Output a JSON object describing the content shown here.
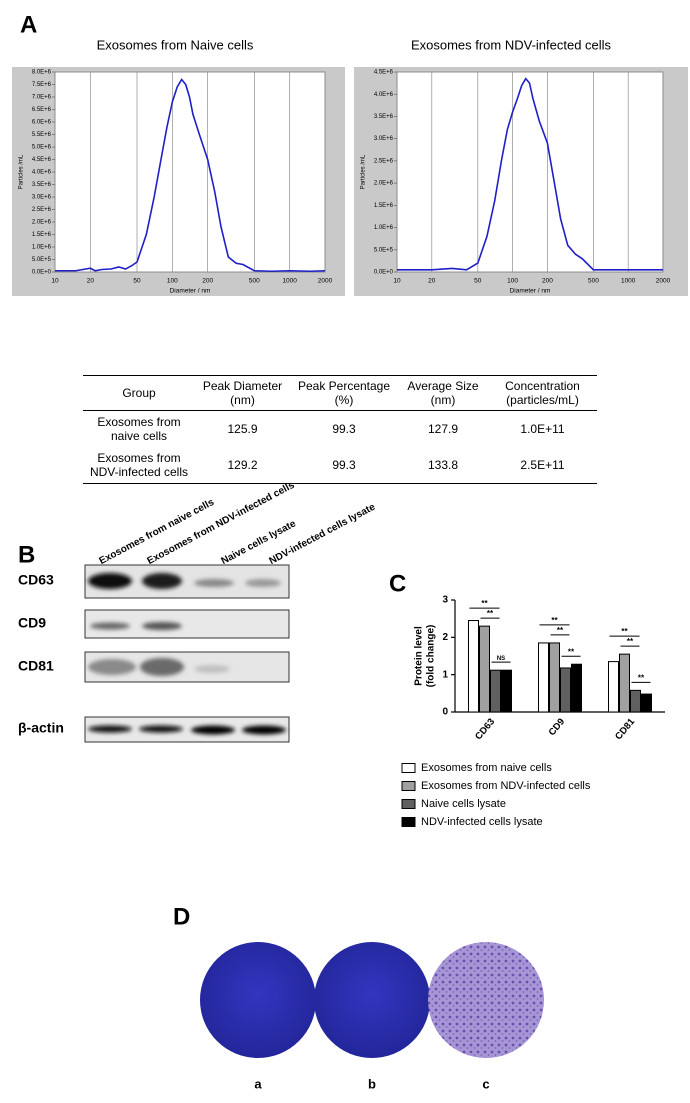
{
  "panels": [
    "A",
    "B",
    "C",
    "D"
  ],
  "chart_data": [
    {
      "type": "line",
      "title": "Exosomes from Naive cells",
      "xlabel": "Diameter / nm",
      "ylabel": "Particles /mL",
      "xscale": "log",
      "xlim": [
        10,
        2000
      ],
      "xticks": [
        10,
        20,
        50,
        100,
        200,
        500,
        1000,
        2000
      ],
      "ylim": [
        0,
        8000000
      ],
      "yticks": [
        {
          "value": 0,
          "label": "0.0E+0"
        },
        {
          "value": 500000,
          "label": "5.0E+5"
        },
        {
          "value": 1000000,
          "label": "1.0E+6"
        },
        {
          "value": 1500000,
          "label": "1.5E+6"
        },
        {
          "value": 2000000,
          "label": "2.0E+6"
        },
        {
          "value": 2500000,
          "label": "2.5E+6"
        },
        {
          "value": 3000000,
          "label": "3.0E+6"
        },
        {
          "value": 3500000,
          "label": "3.5E+6"
        },
        {
          "value": 4000000,
          "label": "4.0E+6"
        },
        {
          "value": 4500000,
          "label": "4.5E+6"
        },
        {
          "value": 5000000,
          "label": "5.0E+6"
        },
        {
          "value": 5500000,
          "label": "5.5E+6"
        },
        {
          "value": 6000000,
          "label": "6.0E+6"
        },
        {
          "value": 6500000,
          "label": "6.5E+6"
        },
        {
          "value": 7000000,
          "label": "7.0E+6"
        },
        {
          "value": 7500000,
          "label": "7.5E+6"
        },
        {
          "value": 8000000,
          "label": "8.0E+6"
        }
      ],
      "grid": true,
      "color": "#1f1fc8",
      "x": [
        10,
        15,
        20,
        22,
        25,
        30,
        35,
        40,
        45,
        50,
        60,
        70,
        80,
        90,
        100,
        110,
        120,
        130,
        140,
        150,
        170,
        200,
        230,
        260,
        300,
        350,
        400,
        500,
        700,
        1000,
        1500,
        2000
      ],
      "values": [
        50000,
        50000,
        150000,
        50000,
        100000,
        120000,
        200000,
        120000,
        250000,
        400000,
        1500000,
        3000000,
        4500000,
        5800000,
        6800000,
        7400000,
        7700000,
        7500000,
        7000000,
        6300000,
        5500000,
        4500000,
        3200000,
        1800000,
        600000,
        350000,
        300000,
        50000,
        30000,
        50000,
        30000,
        50000
      ]
    },
    {
      "type": "line",
      "title": "Exosomes from NDV-infected cells",
      "xlabel": "Diameter / nm",
      "ylabel": "Particles /mL",
      "xscale": "log",
      "xlim": [
        10,
        2000
      ],
      "xticks": [
        10,
        20,
        50,
        100,
        200,
        500,
        1000,
        2000
      ],
      "ylim": [
        0,
        4500000
      ],
      "yticks": [
        {
          "value": 0,
          "label": "0.0E+0"
        },
        {
          "value": 500000,
          "label": "5.0E+5"
        },
        {
          "value": 1000000,
          "label": "1.0E+6"
        },
        {
          "value": 1500000,
          "label": "1.5E+6"
        },
        {
          "value": 2000000,
          "label": "2.0E+6"
        },
        {
          "value": 2500000,
          "label": "2.5E+6"
        },
        {
          "value": 3000000,
          "label": "3.0E+6"
        },
        {
          "value": 3500000,
          "label": "3.5E+6"
        },
        {
          "value": 4000000,
          "label": "4.0E+6"
        },
        {
          "value": 4500000,
          "label": "4.5E+6"
        }
      ],
      "grid": true,
      "color": "#1f1fc8",
      "x": [
        10,
        20,
        30,
        40,
        50,
        60,
        70,
        80,
        90,
        100,
        110,
        120,
        130,
        140,
        150,
        170,
        200,
        230,
        260,
        300,
        350,
        400,
        500,
        700,
        1000,
        2000
      ],
      "values": [
        50000,
        50000,
        80000,
        50000,
        200000,
        800000,
        1600000,
        2500000,
        3200000,
        3600000,
        3900000,
        4200000,
        4350000,
        4250000,
        3900000,
        3400000,
        2900000,
        2000000,
        1200000,
        600000,
        400000,
        300000,
        50000,
        50000,
        50000,
        50000
      ]
    },
    {
      "type": "bar",
      "ylabel": [
        "Protein level",
        "(fold change)"
      ],
      "categories": [
        "CD63",
        "CD9",
        "CD81"
      ],
      "ylim": [
        0,
        3
      ],
      "yticks": [
        0,
        1,
        2,
        3
      ],
      "series": [
        {
          "name": "Exosomes from naive cells",
          "color": "#ffffff",
          "values": [
            2.45,
            1.85,
            1.35
          ]
        },
        {
          "name": "Exosomes from NDV-infected cells",
          "color": "#a0a0a0",
          "values": [
            2.3,
            1.85,
            1.55
          ]
        },
        {
          "name": "Naive cells lysate",
          "color": "#606060",
          "values": [
            1.12,
            1.18,
            0.58
          ]
        },
        {
          "name": "NDV-infected cells lysate",
          "color": "#000000",
          "values": [
            1.12,
            1.28,
            0.48
          ]
        }
      ],
      "annotations": [
        "**",
        "**",
        "NS",
        "**",
        "**",
        "**",
        "**",
        "**",
        "**"
      ]
    }
  ],
  "table": {
    "header": [
      "Group",
      "Peak Diameter (nm)",
      "Peak Percentage (%)",
      "Average Size (nm)",
      "Concentration (particles/mL)"
    ],
    "rows": [
      [
        "Exosomes from naive cells",
        125.9,
        99.3,
        127.9,
        "1.0E+11"
      ],
      [
        "Exosomes from NDV-infected cells",
        129.2,
        99.3,
        133.8,
        "2.5E+11"
      ]
    ]
  },
  "blot": {
    "lanes": [
      "Exosomes from naive cells",
      "Exosomes from NDV-infected cells",
      "Naive cells lysate",
      "NDV-infected cells lysate"
    ],
    "rows": [
      "CD63",
      "CD9",
      "CD81",
      "β-actin"
    ]
  },
  "plates": [
    "a",
    "b",
    "c"
  ]
}
